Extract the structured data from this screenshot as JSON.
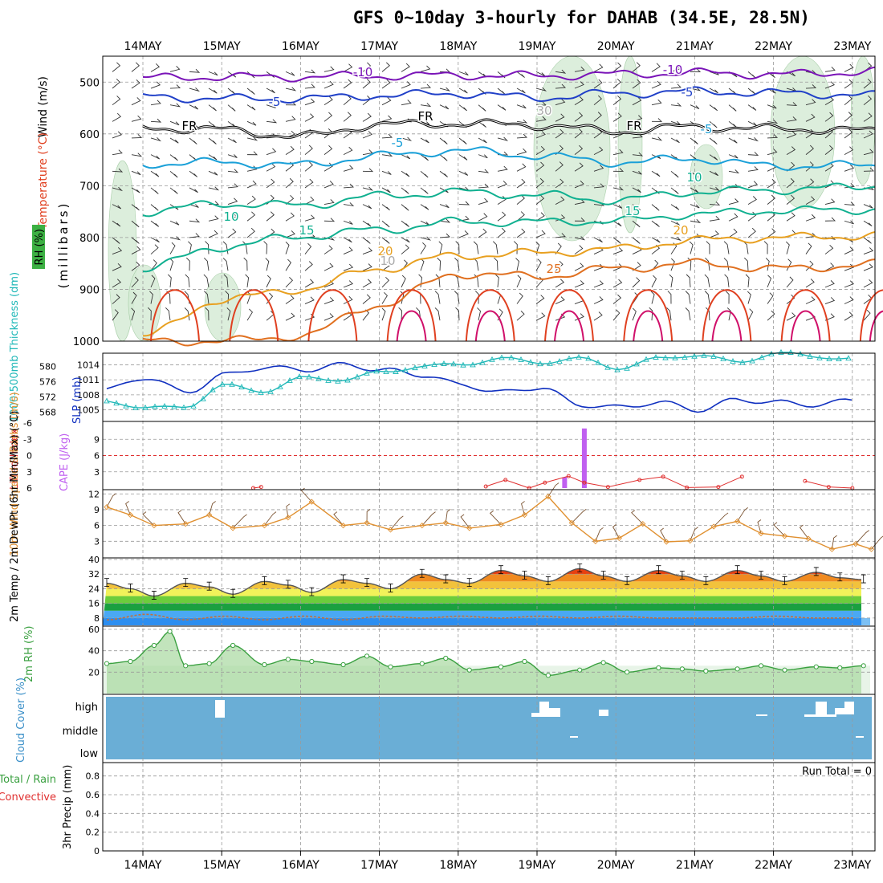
{
  "title": "GFS 0~10day 3-hourly for DAHAB (34.5E, 28.5N)",
  "colors": {
    "temp_cold": "#7a14b8",
    "temp_blue": "#2040c8",
    "temp_cyan": "#1aa0d8",
    "temp_green": "#10b090",
    "temp_orange": "#e8a020",
    "temp_red": "#e04020",
    "temp_magenta": "#d0106a",
    "freezing": "#000000",
    "slp": "#1030c0",
    "thickness": "#20b8b8",
    "lifted_index": "#e03030",
    "cape": "#c060f0",
    "wind": "#e09030",
    "rh2m": "#3aa040",
    "cloud": "#6aaed6"
  },
  "chart_data": [
    {
      "type": "line",
      "panel": "upper-air",
      "title": "",
      "xlabel": "",
      "ylabel": "(millibars)",
      "side_labels": [
        "RH (%)",
        "Temperature (°C)",
        "Wind (m/s)"
      ],
      "y_ticks": [
        500,
        600,
        700,
        800,
        900,
        1000
      ],
      "ylim": [
        1000,
        450
      ],
      "x_ticks": [
        "14MAY",
        "15MAY",
        "16MAY",
        "17MAY",
        "18MAY",
        "19MAY",
        "20MAY",
        "21MAY",
        "22MAY",
        "23MAY"
      ],
      "x_range_days": [
        0,
        9.7
      ],
      "isotherm_labels": [
        "-10",
        "-10",
        "-5",
        "-5",
        "FR",
        "FR",
        "FR",
        "-5",
        "-5",
        "10",
        "10",
        "15",
        "15",
        "20",
        "20",
        "25",
        "30",
        "10"
      ],
      "series": [
        {
          "level": -10,
          "x": [
            0,
            1,
            2,
            3,
            4,
            5,
            6,
            7,
            8,
            9.7
          ],
          "y": [
            492,
            490,
            490,
            488,
            487,
            488,
            485,
            482,
            485,
            478
          ]
        },
        {
          "level": -5,
          "x": [
            0,
            1,
            2,
            3,
            4,
            5,
            6,
            7,
            8,
            9.7
          ],
          "y": [
            528,
            532,
            532,
            526,
            522,
            530,
            522,
            518,
            521,
            527
          ]
        },
        {
          "level": 0,
          "x": [
            0,
            1,
            2,
            3,
            4,
            5,
            6,
            7,
            8,
            9.7
          ],
          "y": [
            588,
            592,
            605,
            582,
            580,
            583,
            595,
            586,
            590,
            595
          ]
        },
        {
          "level": 5,
          "x": [
            0,
            1,
            2,
            3,
            4,
            5,
            6,
            7,
            8,
            9.7
          ],
          "y": [
            658,
            655,
            660,
            642,
            632,
            642,
            655,
            648,
            662,
            660
          ]
        },
        {
          "level": 10,
          "x": [
            0,
            1,
            2,
            3,
            4,
            5,
            6,
            7,
            8,
            9.7
          ],
          "y": [
            750,
            735,
            738,
            720,
            712,
            718,
            728,
            712,
            708,
            698
          ]
        },
        {
          "level": 15,
          "x": [
            0,
            1,
            2,
            3,
            4,
            5,
            6,
            7,
            8,
            9.7
          ],
          "y": [
            860,
            818,
            798,
            785,
            770,
            770,
            768,
            755,
            748,
            745
          ]
        },
        {
          "level": 20,
          "x": [
            0,
            1,
            2,
            3,
            4,
            5,
            6,
            7,
            8,
            9.7
          ],
          "y": [
            990,
            920,
            900,
            860,
            835,
            830,
            822,
            805,
            800,
            795
          ]
        },
        {
          "level": 25,
          "x": [
            0,
            1,
            2,
            3,
            4,
            5,
            6,
            7,
            8,
            9.7
          ],
          "y": [
            1000,
            1000,
            990,
            930,
            870,
            875,
            860,
            850,
            860,
            850
          ]
        }
      ]
    },
    {
      "type": "line",
      "panel": "slp-thickness",
      "ylabel_left": "1000-500mb Thickness (dm)",
      "ylabel_right": "SLP (mb)",
      "left_ticks": [
        568,
        572,
        576,
        580
      ],
      "right_ticks": [
        1005,
        1008,
        1011,
        1014
      ],
      "series": [
        {
          "name": "SLP",
          "x": [
            0,
            0.5,
            1,
            1.5,
            2,
            2.5,
            3,
            3.5,
            4,
            4.5,
            5,
            5.5,
            6,
            6.5,
            7,
            7.5,
            8,
            8.5,
            9,
            9.5
          ],
          "y": [
            1009,
            1011.5,
            1008.5,
            1012,
            1013.5,
            1013,
            1014,
            1013,
            1012,
            1010,
            1008.5,
            1009.5,
            1006,
            1005.5,
            1006.5,
            1005,
            1007,
            1006.5,
            1006,
            1007
          ]
        },
        {
          "name": "Thickness",
          "x": [
            0,
            0.5,
            1,
            1.5,
            2,
            2.5,
            3,
            3.5,
            4,
            4.5,
            5,
            5.5,
            6,
            6.5,
            7,
            7.5,
            8,
            8.5,
            9,
            9.5
          ],
          "y": [
            571,
            569,
            569.5,
            575,
            573.5,
            577,
            576.5,
            578.5,
            580,
            580.5,
            582,
            581,
            582,
            579.5,
            582,
            583,
            581,
            583.5,
            582.5,
            582
          ]
        }
      ]
    },
    {
      "type": "bar",
      "panel": "cape-li",
      "ylabel_left": "Lifted Index",
      "ylabel_right": "CAPE (J/kg)",
      "left_ticks": [
        "-6",
        "-3",
        "0",
        "3",
        "6"
      ],
      "right_ticks": [
        3,
        6,
        9
      ],
      "cape": {
        "x": [
          5.35,
          5.6
        ],
        "values": [
          2,
          11
        ]
      },
      "lifted_index": {
        "x": [
          1.4,
          1.5,
          4.35,
          4.6,
          4.9,
          5.1,
          5.4,
          5.6,
          5.9,
          6.3,
          6.6,
          6.9,
          7.3,
          7.6,
          8.4,
          8.7,
          9.0
        ],
        "y": [
          6,
          5.8,
          5.7,
          4.5,
          6,
          5,
          3.8,
          5,
          5.8,
          4.5,
          3.9,
          5.9,
          5.8,
          3.9,
          4.7,
          5.8,
          6
        ]
      }
    },
    {
      "type": "line",
      "panel": "10m-wind",
      "ylabel": "10m Wind Speed & Barbs (m/s)",
      "y_ticks": [
        3,
        6,
        9,
        12
      ],
      "ylim": [
        0,
        12
      ],
      "series": [
        {
          "name": "10m Wind Speed",
          "x": [
            0,
            0.3,
            0.6,
            1,
            1.3,
            1.6,
            2,
            2.3,
            2.6,
            3,
            3.3,
            3.6,
            4,
            4.3,
            4.6,
            5,
            5.3,
            5.6,
            5.9,
            6.2,
            6.5,
            6.8,
            7.1,
            7.4,
            7.7,
            8,
            8.3,
            8.6,
            8.9,
            9.2,
            9.5,
            9.7
          ],
          "y": [
            9.5,
            8,
            6,
            6.3,
            8,
            5.5,
            6,
            7.5,
            10.5,
            6,
            6.5,
            5.2,
            6,
            6.5,
            5.5,
            6.2,
            8,
            11.5,
            6.5,
            3,
            3.6,
            6.3,
            2.9,
            3.1,
            5.8,
            6.8,
            4.5,
            4,
            3.5,
            1.5,
            2.5,
            1.5
          ]
        }
      ]
    },
    {
      "type": "area",
      "panel": "2m-temp",
      "ylabel": "2m Temp / 2m DewPt (6hr Min/Max) (°C)",
      "y_ticks": [
        8,
        16,
        24,
        32,
        40
      ],
      "ylim": [
        4,
        40
      ],
      "series": [
        {
          "name": "2m Temp",
          "x": [
            0,
            0.3,
            0.6,
            1,
            1.3,
            1.6,
            2,
            2.3,
            2.6,
            3,
            3.3,
            3.6,
            4,
            4.3,
            4.6,
            5,
            5.3,
            5.6,
            6,
            6.3,
            6.6,
            7,
            7.3,
            7.6,
            8,
            8.3,
            8.6,
            9,
            9.3,
            9.6
          ],
          "y": [
            27,
            24,
            20,
            27,
            25,
            21,
            28,
            26,
            22,
            29,
            27,
            24,
            32,
            29,
            27,
            34,
            31,
            28,
            35,
            31,
            28,
            34,
            31,
            28,
            34,
            31,
            28,
            33,
            30,
            29
          ]
        },
        {
          "name": "2m DewPt",
          "x": [
            0,
            0.5,
            1,
            1.5,
            2,
            2.5,
            3,
            3.5,
            4,
            4.5,
            5,
            5.5,
            6,
            6.5,
            7,
            7.5,
            8,
            8.5,
            9,
            9.5
          ],
          "y": [
            7,
            10,
            7,
            9,
            7,
            9,
            7,
            9,
            8,
            9,
            8,
            9,
            8,
            9,
            8,
            8,
            8,
            9,
            8,
            8
          ]
        }
      ]
    },
    {
      "type": "area",
      "panel": "2m-rh",
      "ylabel": "2m RH (%)",
      "y_ticks": [
        20,
        40,
        60
      ],
      "ylim": [
        0,
        60
      ],
      "series": [
        {
          "name": "2m RH",
          "x": [
            0,
            0.3,
            0.6,
            0.8,
            1,
            1.3,
            1.6,
            2,
            2.3,
            2.6,
            3,
            3.3,
            3.6,
            4,
            4.3,
            4.6,
            5,
            5.3,
            5.6,
            6,
            6.3,
            6.6,
            7,
            7.3,
            7.6,
            8,
            8.3,
            8.6,
            9,
            9.3,
            9.6
          ],
          "y": [
            28,
            30,
            45,
            58,
            26,
            28,
            45,
            27,
            32,
            30,
            27,
            35,
            25,
            28,
            33,
            22,
            25,
            30,
            17,
            22,
            29,
            20,
            24,
            23,
            21,
            23,
            26,
            22,
            25,
            24,
            26
          ]
        }
      ]
    },
    {
      "type": "heatmap",
      "panel": "cloud-cover",
      "ylabel": "Cloud Cover (%)",
      "levels": [
        "high",
        "middle",
        "low"
      ]
    },
    {
      "type": "bar",
      "panel": "precip",
      "ylabel": "3hr Precip (mm)",
      "legend": [
        "Total / Rain",
        "Convective"
      ],
      "y_ticks": [
        "0",
        "0.2",
        "0.4",
        "0.6",
        "0.8"
      ],
      "ylim": [
        0,
        0.9
      ],
      "run_total": "Run Total = 0",
      "values": []
    }
  ]
}
